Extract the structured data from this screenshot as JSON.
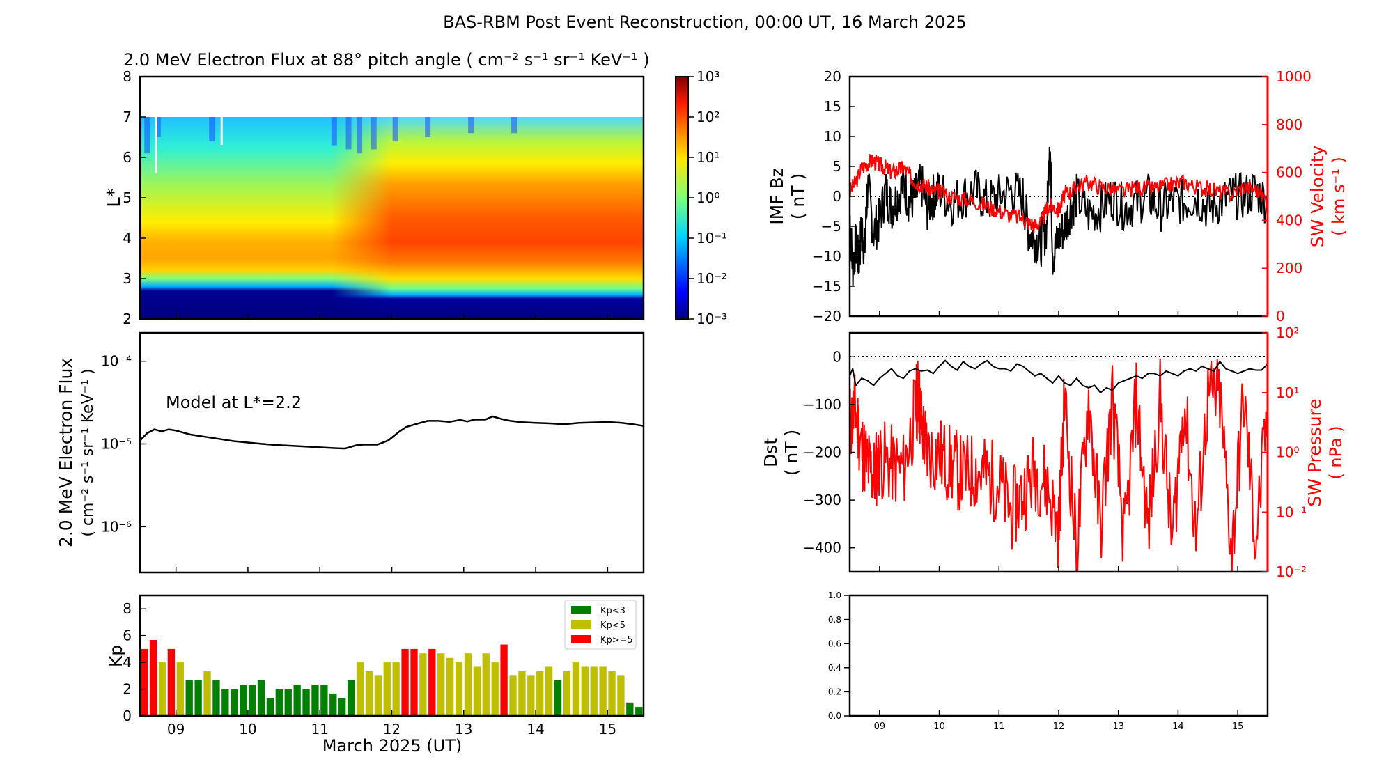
{
  "title": "BAS-RBM Post Event Reconstruction, 00:00 UT, 16 March 2025",
  "colors": {
    "red": "#ff0000",
    "black": "#000000",
    "green": "#008000",
    "olive": "#bfbf00"
  },
  "x_axis": {
    "label": "March 2025 (UT)",
    "range": [
      8.5,
      15.5
    ],
    "ticks": [
      "09",
      "10",
      "11",
      "12",
      "13",
      "14",
      "15"
    ],
    "tick_values": [
      9,
      10,
      11,
      12,
      13,
      14,
      15
    ]
  },
  "chart_data": [
    {
      "type": "heatmap",
      "title": "2.0 MeV Electron Flux at 88° pitch angle ( cm⁻² s⁻¹ sr⁻¹ KeV⁻¹ )",
      "ylabel": "L*",
      "ylim": [
        2,
        8
      ],
      "yticks": [
        "2",
        "3",
        "4",
        "5",
        "6",
        "7",
        "8"
      ],
      "data_top_lstar": 7,
      "colorbar": {
        "scale": "log",
        "range": [
          0.001,
          1000
        ],
        "ticks": [
          "10⁻³",
          "10⁻²",
          "10⁻¹",
          "10⁰",
          "10¹",
          "10²",
          "10³"
        ],
        "colormap": "jet"
      },
      "description": "Slot region (L*<2.8) ~1e-3; outer belt peak ~L*=3.8; peak flux rises from ~1e1 to ~1e2 after 11.5 March; blue dropouts near L*=6-7"
    },
    {
      "type": "line",
      "ylabel": "2.0 MeV Electron Flux",
      "ylabel2": "( cm⁻² s⁻¹ sr⁻¹ KeV⁻¹ )",
      "yscale": "log",
      "ylim": [
        2.8e-07,
        0.00022
      ],
      "yticks": [
        "10⁻⁶",
        "10⁻⁵",
        "10⁻⁴"
      ],
      "annotation": "Model at L*=2.2",
      "x": [
        8.5,
        8.6,
        8.7,
        8.8,
        8.9,
        9.0,
        9.2,
        9.4,
        9.6,
        9.8,
        10.0,
        10.2,
        10.4,
        10.6,
        10.8,
        11.0,
        11.2,
        11.35,
        11.5,
        11.6,
        11.8,
        11.95,
        12.1,
        12.2,
        12.35,
        12.5,
        12.65,
        12.8,
        12.95,
        13.05,
        13.15,
        13.3,
        13.4,
        13.55,
        13.65,
        13.8,
        14.0,
        14.2,
        14.4,
        14.6,
        14.8,
        15.0,
        15.2,
        15.35,
        15.5
      ],
      "y": [
        1.1e-05,
        1.35e-05,
        1.5e-05,
        1.42e-05,
        1.5e-05,
        1.45e-05,
        1.3e-05,
        1.22e-05,
        1.15e-05,
        1.08e-05,
        1.04e-05,
        1e-05,
        9.7e-06,
        9.5e-06,
        9.3e-06,
        9.1e-06,
        8.9e-06,
        8.8e-06,
        9.6e-06,
        9.8e-06,
        9.8e-06,
        1.1e-05,
        1.4e-05,
        1.6e-05,
        1.75e-05,
        1.9e-05,
        1.9e-05,
        1.85e-05,
        1.95e-05,
        1.87e-05,
        1.97e-05,
        1.97e-05,
        2.15e-05,
        1.98e-05,
        1.9e-05,
        1.83e-05,
        1.8e-05,
        1.77e-05,
        1.73e-05,
        1.8e-05,
        1.82e-05,
        1.84e-05,
        1.8e-05,
        1.73e-05,
        1.65e-05
      ]
    },
    {
      "type": "bar",
      "ylabel": "Kp",
      "ylim": [
        0,
        9
      ],
      "yticks": [
        "0",
        "2",
        "4",
        "6",
        "8"
      ],
      "bar_start": 8.5,
      "bar_step_days": 0.125,
      "values": [
        5,
        5.67,
        4,
        5,
        4,
        2.67,
        2.67,
        3.33,
        2.67,
        2,
        2,
        2.33,
        2.33,
        2.67,
        1.33,
        2,
        2,
        2.33,
        2,
        2.33,
        2.33,
        1.67,
        1.33,
        2.67,
        4,
        3.33,
        3,
        4,
        4,
        5,
        5,
        4.67,
        5,
        4.67,
        4.33,
        4,
        4.67,
        3.67,
        4.67,
        4,
        5.33,
        3,
        3.33,
        3,
        3.33,
        3.67,
        2.67,
        3.33,
        4,
        3.67,
        3.67,
        3.67,
        3.33,
        3,
        1,
        0.67
      ],
      "legend": [
        {
          "label": "Kp<3",
          "color": "#008000"
        },
        {
          "label": "Kp<5",
          "color": "#bfbf00"
        },
        {
          "label": "Kp>=5",
          "color": "#ff0000"
        }
      ],
      "legend_position": "top-right"
    },
    {
      "type": "line",
      "ylabel": "IMF Bz",
      "ylabel_unit": "( nT )",
      "ylim": [
        -20,
        20
      ],
      "yticks": [
        "−20",
        "−15",
        "−10",
        "−5",
        "0",
        "5",
        "10",
        "15",
        "20"
      ],
      "y2label": "SW Velocity",
      "y2label_unit": "( km s⁻¹ )",
      "y2lim": [
        0,
        1000
      ],
      "y2ticks": [
        "0",
        "200",
        "400",
        "600",
        "800",
        "1000"
      ],
      "series": [
        {
          "name": "IMF Bz",
          "color": "#000000",
          "x": [
            8.5,
            8.55,
            8.6,
            8.65,
            8.7,
            8.75,
            8.8,
            8.9,
            9.0,
            9.1,
            9.2,
            9.3,
            9.4,
            9.5,
            9.6,
            9.7,
            9.8,
            9.9,
            10.0,
            10.2,
            10.4,
            10.6,
            10.8,
            11.0,
            11.2,
            11.4,
            11.5,
            11.6,
            11.7,
            11.8,
            11.85,
            11.9,
            12.0,
            12.1,
            12.2,
            12.3,
            12.5,
            12.7,
            12.9,
            13.1,
            13.3,
            13.5,
            13.7,
            13.9,
            14.1,
            14.3,
            14.5,
            14.7,
            14.9,
            15.1,
            15.3,
            15.5
          ],
          "y": [
            -3,
            -12,
            -8,
            -11,
            -5,
            -9,
            2,
            -6,
            -4,
            1,
            -2,
            0,
            2,
            -1,
            0,
            2,
            -2,
            0,
            1,
            -1,
            0,
            1,
            -1,
            0,
            1,
            0,
            -6,
            -7,
            -8,
            -5,
            11,
            -10,
            -7,
            -5,
            -2,
            0,
            -3,
            -2,
            0,
            -2,
            -1,
            0,
            -2,
            -1,
            -1,
            0,
            -2,
            -1,
            0,
            0,
            1,
            -1
          ]
        },
        {
          "name": "SW Velocity",
          "color": "#ff0000",
          "x": [
            8.5,
            8.6,
            8.7,
            8.8,
            8.9,
            9.0,
            9.1,
            9.2,
            9.3,
            9.4,
            9.5,
            9.6,
            9.7,
            9.8,
            9.9,
            10.0,
            10.2,
            10.4,
            10.6,
            10.8,
            11.0,
            11.2,
            11.4,
            11.5,
            11.6,
            11.7,
            11.8,
            11.9,
            12.0,
            12.1,
            12.2,
            12.3,
            12.5,
            12.7,
            12.9,
            13.1,
            13.3,
            13.5,
            13.7,
            13.9,
            14.1,
            14.3,
            14.5,
            14.7,
            14.9,
            15.1,
            15.3,
            15.5
          ],
          "y": [
            520,
            560,
            620,
            640,
            650,
            630,
            620,
            600,
            610,
            620,
            590,
            560,
            550,
            540,
            520,
            520,
            500,
            490,
            480,
            460,
            440,
            420,
            410,
            390,
            380,
            390,
            450,
            460,
            440,
            510,
            520,
            540,
            560,
            540,
            530,
            520,
            540,
            530,
            540,
            550,
            560,
            540,
            530,
            520,
            510,
            540,
            530,
            480
          ]
        }
      ]
    },
    {
      "type": "line",
      "ylabel": "Dst",
      "ylabel_unit": "( nT )",
      "ylim": [
        -450,
        50
      ],
      "yticks": [
        "−400",
        "−300",
        "−200",
        "−100",
        "0"
      ],
      "y2label": "SW Pressure",
      "y2label_unit": "( nPa )",
      "y2scale": "log",
      "y2lim": [
        0.01,
        100
      ],
      "y2ticks": [
        "10⁻²",
        "10⁻¹",
        "10⁰",
        "10¹",
        "10²"
      ],
      "series": [
        {
          "name": "Dst",
          "color": "#000000",
          "x": [
            8.5,
            8.55,
            8.6,
            8.7,
            8.8,
            8.9,
            9.0,
            9.1,
            9.2,
            9.3,
            9.4,
            9.5,
            9.6,
            9.7,
            9.8,
            9.9,
            10.0,
            10.1,
            10.2,
            10.3,
            10.4,
            10.5,
            10.6,
            10.7,
            10.8,
            10.9,
            11.0,
            11.1,
            11.2,
            11.3,
            11.4,
            11.5,
            11.6,
            11.7,
            11.8,
            11.9,
            12.0,
            12.1,
            12.2,
            12.3,
            12.4,
            12.5,
            12.6,
            12.7,
            12.8,
            12.9,
            13.0,
            13.1,
            13.2,
            13.3,
            13.4,
            13.5,
            13.6,
            13.7,
            13.8,
            13.9,
            14.0,
            14.1,
            14.2,
            14.3,
            14.4,
            14.5,
            14.6,
            14.7,
            14.8,
            14.9,
            15.0,
            15.1,
            15.2,
            15.3,
            15.4,
            15.5
          ],
          "y": [
            -40,
            -25,
            -60,
            -45,
            -50,
            -60,
            -45,
            -35,
            -25,
            -40,
            -45,
            -30,
            -25,
            -30,
            -28,
            -35,
            -20,
            -8,
            -20,
            -28,
            -10,
            -20,
            -25,
            -15,
            -8,
            -20,
            -25,
            -25,
            -30,
            -15,
            -20,
            -30,
            -40,
            -35,
            -45,
            -55,
            -40,
            -55,
            -60,
            -45,
            -60,
            -65,
            -60,
            -75,
            -65,
            -70,
            -55,
            -50,
            -45,
            -40,
            -45,
            -35,
            -35,
            -40,
            -30,
            -35,
            -40,
            -30,
            -25,
            -30,
            -20,
            -25,
            -30,
            -10,
            -25,
            -30,
            -35,
            -30,
            -25,
            -28,
            -28,
            -15
          ]
        },
        {
          "name": "SW Pressure",
          "color": "#ff0000",
          "x": [
            8.5,
            8.6,
            8.7,
            8.8,
            8.9,
            9.0,
            9.2,
            9.4,
            9.6,
            9.65,
            9.7,
            9.8,
            10.0,
            10.2,
            10.4,
            10.6,
            10.8,
            11.0,
            11.2,
            11.4,
            11.6,
            11.8,
            12.0,
            12.1,
            12.3,
            12.5,
            12.7,
            12.9,
            13.1,
            13.3,
            13.5,
            13.7,
            13.9,
            14.1,
            14.3,
            14.5,
            14.7,
            14.9,
            15.1,
            15.3,
            15.5
          ],
          "y": [
            3,
            5,
            1.2,
            0.6,
            0.4,
            0.8,
            0.6,
            0.5,
            5,
            10,
            3,
            1,
            0.9,
            0.6,
            0.4,
            0.5,
            0.4,
            0.3,
            0.1,
            0.2,
            0.5,
            0.3,
            0.05,
            8,
            0.02,
            8,
            0.05,
            8,
            0.03,
            8,
            0.05,
            8,
            0.03,
            8,
            0.04,
            8,
            8,
            0.02,
            8,
            0.03,
            5
          ]
        }
      ]
    },
    {
      "type": "line",
      "empty": true,
      "ylim": [
        0,
        1
      ],
      "yticks": [
        "0.0",
        "0.2",
        "0.4",
        "0.6",
        "0.8",
        "1.0"
      ]
    }
  ]
}
